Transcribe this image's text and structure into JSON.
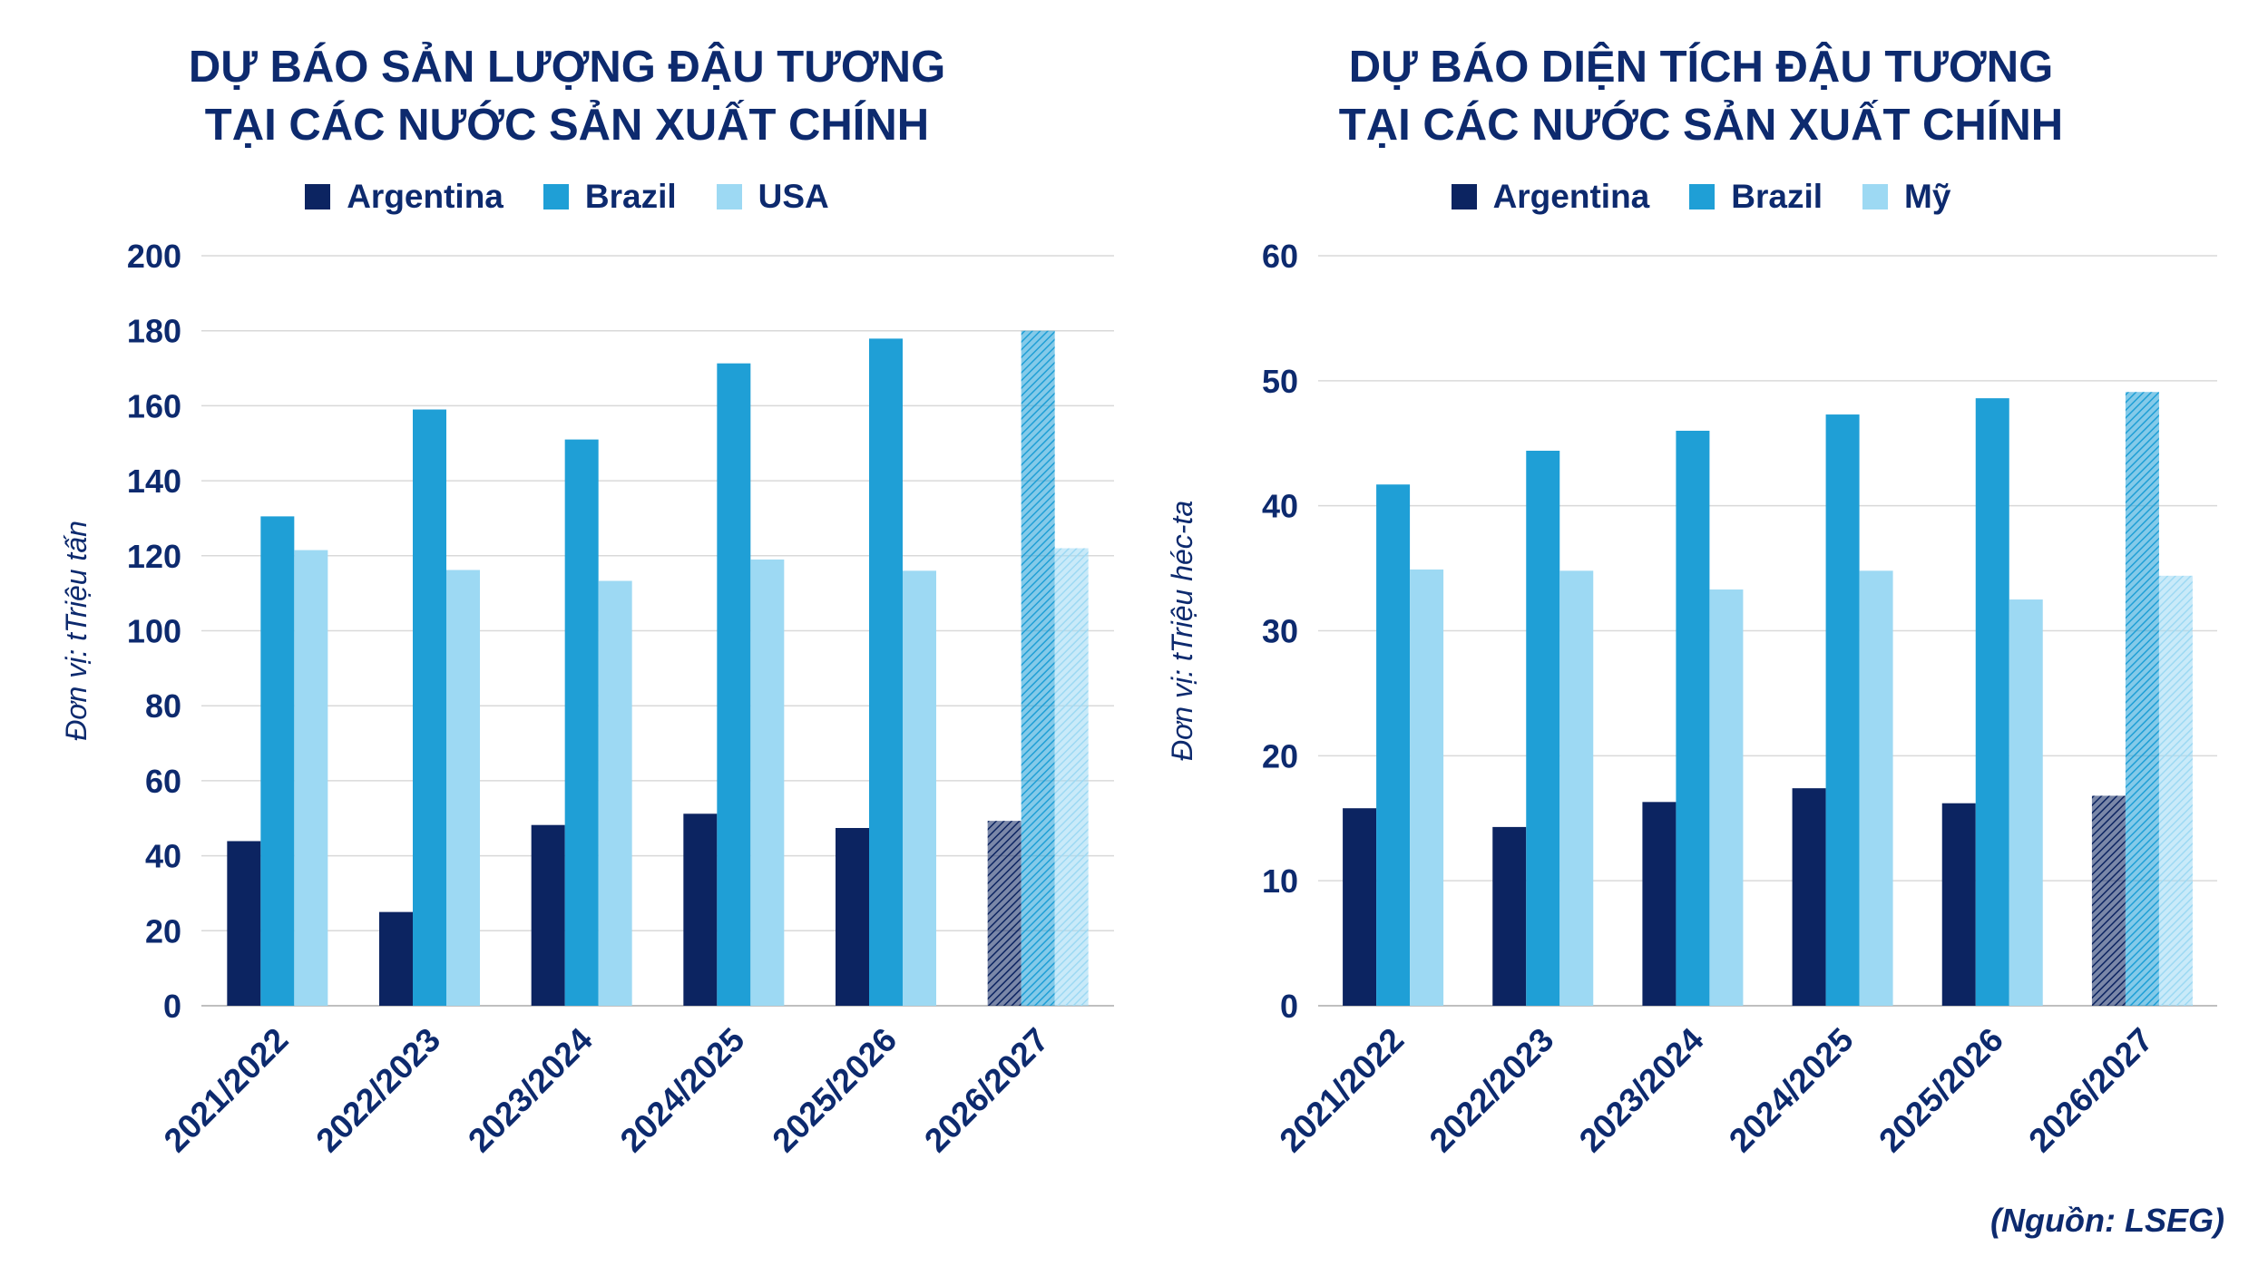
{
  "colors": {
    "text": "#0d2a6e",
    "grid": "#d9d9d9",
    "axis": "#bfbfbf",
    "series": [
      "#0c2461",
      "#1f9fd6",
      "#9dd9f3"
    ]
  },
  "source": "(Nguồn: LSEG)",
  "chart_data": [
    {
      "type": "bar",
      "title_lines": [
        "DỰ BÁO SẢN LƯỢNG ĐẬU TƯƠNG",
        "TẠI CÁC NƯỚC SẢN XUẤT CHÍNH"
      ],
      "ylabel": "Đơn vị: tTriệu tấn",
      "xlabel": "",
      "categories": [
        "2021/2022",
        "2022/2023",
        "2023/2024",
        "2024/2025",
        "2025/2026",
        "2026/2027"
      ],
      "forecast_categories": [
        "2026/2027"
      ],
      "ylim": [
        0,
        200
      ],
      "yticks": [
        0,
        20,
        40,
        60,
        80,
        100,
        120,
        140,
        160,
        180,
        200
      ],
      "grid": true,
      "legend_position": "top",
      "series": [
        {
          "name": "Argentina",
          "values": [
            43.9,
            25.0,
            48.2,
            51.2,
            47.4,
            49.3
          ]
        },
        {
          "name": "Brazil",
          "values": [
            130.5,
            159.0,
            151.0,
            171.3,
            177.9,
            180.0
          ]
        },
        {
          "name": "USA",
          "values": [
            121.5,
            116.2,
            113.3,
            119.0,
            116.0,
            122.0
          ]
        }
      ]
    },
    {
      "type": "bar",
      "title_lines": [
        "DỰ BÁO DIỆN TÍCH ĐẬU TƯƠNG",
        "TẠI CÁC NƯỚC SẢN XUẤT CHÍNH"
      ],
      "ylabel": "Đơn vị: tTriệu héc-ta",
      "xlabel": "",
      "categories": [
        "2021/2022",
        "2022/2023",
        "2023/2024",
        "2024/2025",
        "2025/2026",
        "2026/2027"
      ],
      "forecast_categories": [
        "2026/2027"
      ],
      "ylim": [
        0,
        60
      ],
      "yticks": [
        0,
        10,
        20,
        30,
        40,
        50,
        60
      ],
      "grid": true,
      "legend_position": "top",
      "series": [
        {
          "name": "Argentina",
          "values": [
            15.8,
            14.3,
            16.3,
            17.4,
            16.2,
            16.8
          ]
        },
        {
          "name": "Brazil",
          "values": [
            41.7,
            44.4,
            46.0,
            47.3,
            48.6,
            49.1
          ]
        },
        {
          "name": "Mỹ",
          "values": [
            34.9,
            34.8,
            33.3,
            34.8,
            32.5,
            34.4
          ]
        }
      ]
    }
  ]
}
